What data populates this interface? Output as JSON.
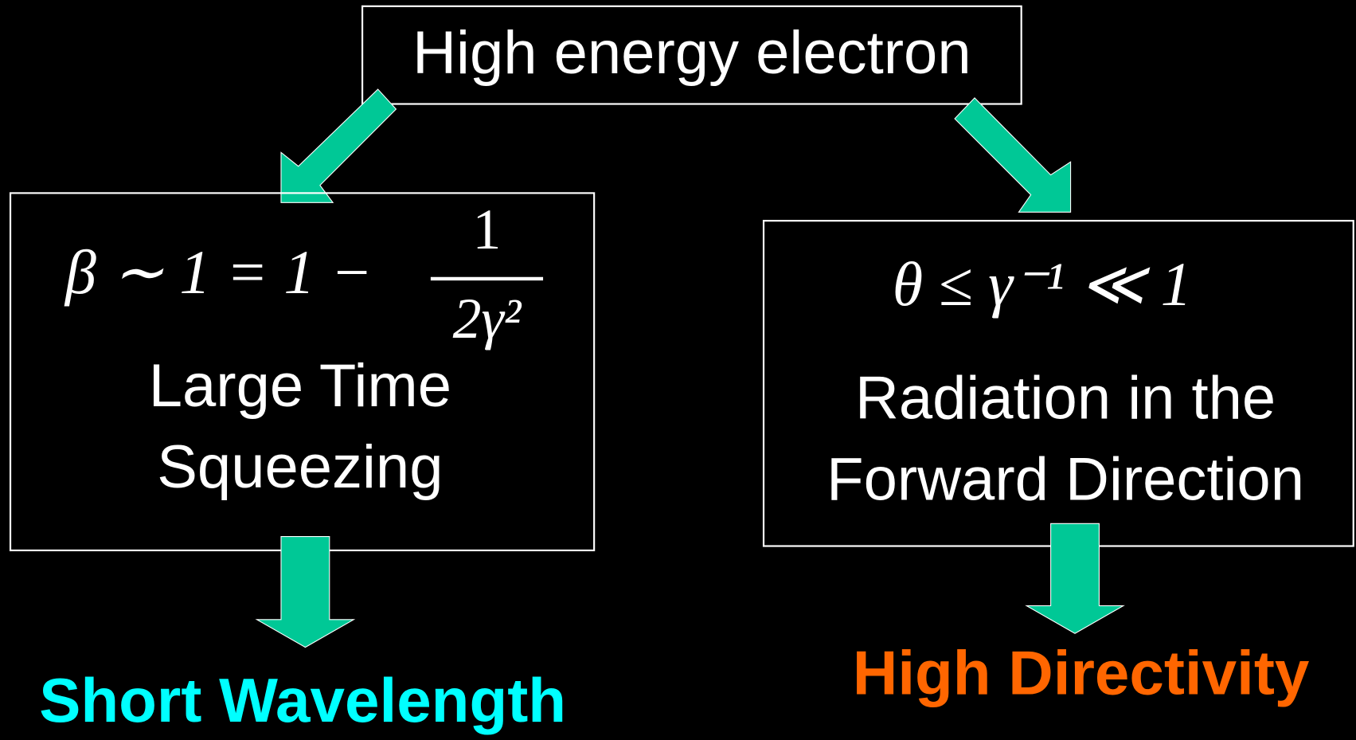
{
  "top_node": {
    "label": "High energy electron"
  },
  "left_box": {
    "formula": "β ∼ 1 = 1 −",
    "fraction_numerator": "1",
    "fraction_denominator": "2γ²",
    "lines": [
      "Large Time",
      "Squeezing"
    ]
  },
  "right_box": {
    "formula": "θ ≤ γ⁻¹ ≪ 1",
    "lines": [
      "Radiation in the",
      "Forward Direction"
    ]
  },
  "outputs": {
    "left": "Short Wavelength",
    "right": "High Directivity"
  }
}
